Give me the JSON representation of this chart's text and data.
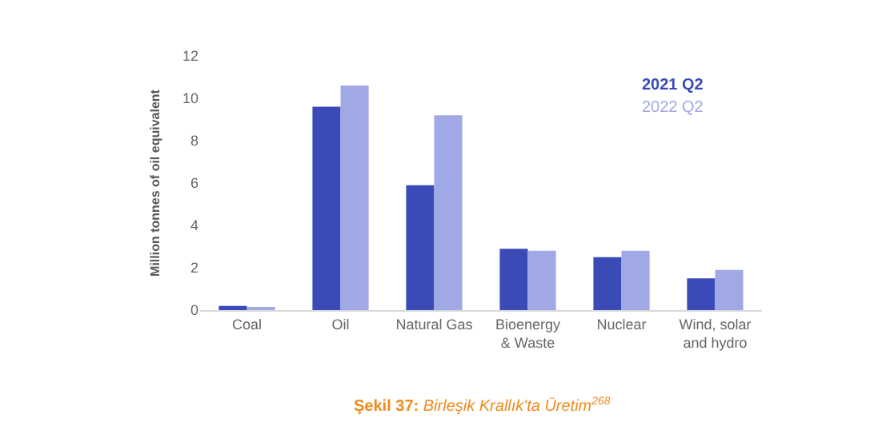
{
  "chart_data": {
    "type": "bar",
    "ylabel": "Million tonnes of oil equivalent",
    "categories": [
      "Coal",
      "Oil",
      "Natural Gas",
      "Bioenergy\n& Waste",
      "Nuclear",
      "Wind, solar\nand hydro"
    ],
    "series": [
      {
        "name": "2021 Q2",
        "color": "#3a4bb8",
        "values": [
          0.2,
          9.6,
          5.9,
          2.9,
          2.5,
          1.5
        ]
      },
      {
        "name": "2022 Q2",
        "color": "#a0a8e6",
        "values": [
          0.1,
          10.6,
          9.2,
          2.8,
          2.8,
          1.9
        ]
      }
    ],
    "ylim": [
      0,
      12
    ],
    "yticks": [
      0,
      2,
      4,
      6,
      8,
      10,
      12
    ],
    "legend": "top right",
    "annotations": [
      "Şekil 37: Birleşik Krallık'ta Üretim$^{268}$"
    ]
  }
}
